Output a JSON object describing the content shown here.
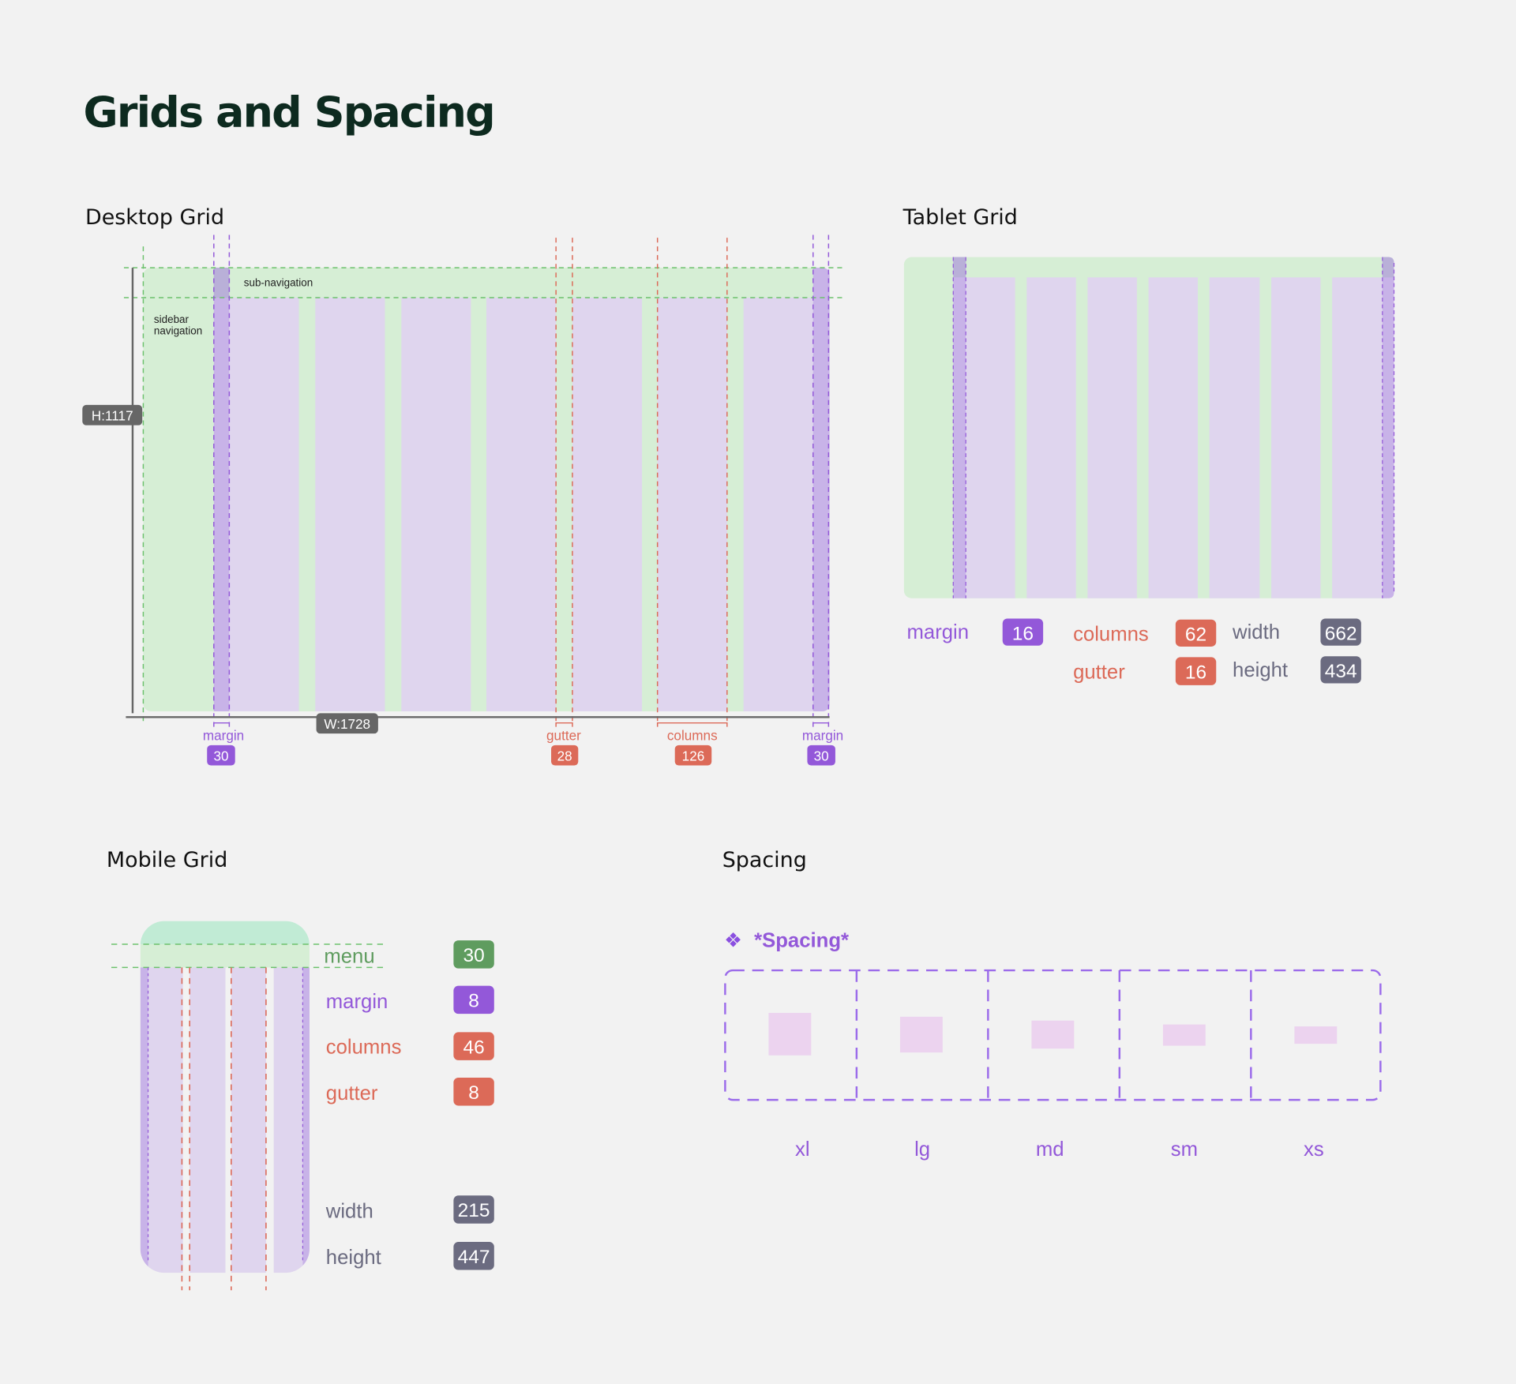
{
  "title": "Grids and Spacing",
  "colors": {
    "background": "#f2f2f2",
    "green_area": "#d6eed5",
    "column": "#dfd5ee",
    "margin": "#c8b3e8",
    "purple": "#9358d9",
    "red": "#dc6a58",
    "gray": "#6b6b80",
    "green": "#5f9c5f",
    "pink": "#ecd3ef"
  },
  "desktop": {
    "heading": "Desktop Grid",
    "sub_navigation": "sub-navigation",
    "sidebar_line1": "sidebar",
    "sidebar_line2": "navigation",
    "height_badge": "H:1117",
    "width_badge": "W:1728",
    "margin_left": {
      "label": "margin",
      "value": "30"
    },
    "gutter": {
      "label": "gutter",
      "value": "28"
    },
    "columns": {
      "label": "columns",
      "value": "126"
    },
    "margin_right": {
      "label": "margin",
      "value": "30"
    }
  },
  "tablet": {
    "heading": "Tablet Grid",
    "margin": {
      "label": "margin",
      "value": "16"
    },
    "columns": {
      "label": "columns",
      "value": "62"
    },
    "gutter": {
      "label": "gutter",
      "value": "16"
    },
    "width": {
      "label": "width",
      "value": "662"
    },
    "height": {
      "label": "height",
      "value": "434"
    }
  },
  "mobile": {
    "heading": "Mobile Grid",
    "menu": {
      "label": "menu",
      "value": "30"
    },
    "margin": {
      "label": "margin",
      "value": "8"
    },
    "columns": {
      "label": "columns",
      "value": "46"
    },
    "gutter": {
      "label": "gutter",
      "value": "8"
    },
    "width": {
      "label": "width",
      "value": "215"
    },
    "height": {
      "label": "height",
      "value": "447"
    }
  },
  "spacing": {
    "heading": "Spacing",
    "component_icon": "component-diamond-icon",
    "component_glyph": "❖",
    "component_name": "*Spacing*",
    "sizes": [
      {
        "label": "xl"
      },
      {
        "label": "lg"
      },
      {
        "label": "md"
      },
      {
        "label": "sm"
      },
      {
        "label": "xs"
      }
    ]
  }
}
